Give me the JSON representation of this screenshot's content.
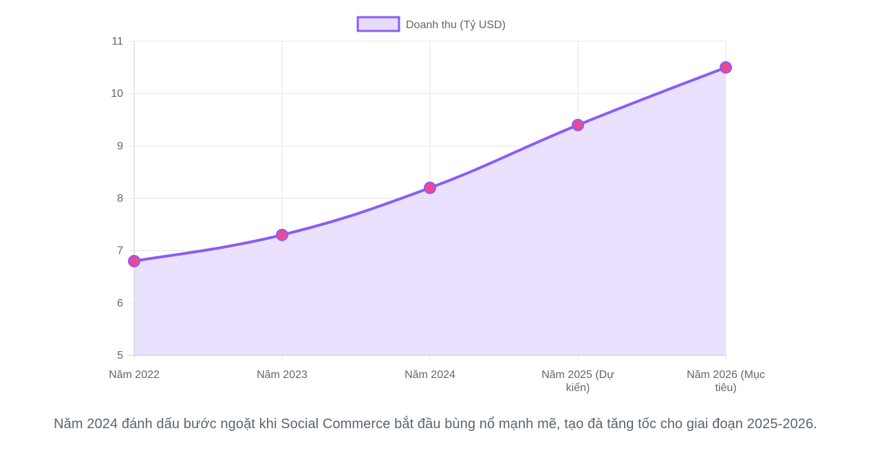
{
  "chart_data": {
    "type": "area",
    "categories": [
      [
        "Năm 2022"
      ],
      [
        "Năm 2023"
      ],
      [
        "Năm 2024"
      ],
      [
        "Năm 2025 (Dự",
        "kiến)"
      ],
      [
        "Năm 2026 (Mục",
        "tiêu)"
      ]
    ],
    "series": [
      {
        "name": "Doanh thu (Tỷ USD)",
        "values": [
          6.8,
          7.3,
          8.2,
          9.4,
          10.5
        ]
      }
    ],
    "ylim": [
      5,
      11
    ],
    "yticks": [
      5,
      6,
      7,
      8,
      9,
      10,
      11
    ],
    "grid": true,
    "legend_position": "top-center",
    "colors": {
      "line": "#8b5cf6",
      "fill": "#e5dcfe",
      "point_fill": "#ec4899",
      "point_stroke": "#8b5cf6",
      "grid": "#e5e5e5",
      "axis": "#cccccc"
    }
  },
  "caption": "Năm 2024 đánh dấu bước ngoặt khi Social Commerce bắt đầu bùng nổ mạnh mẽ, tạo đà tăng tốc cho giai đoạn 2025-2026."
}
